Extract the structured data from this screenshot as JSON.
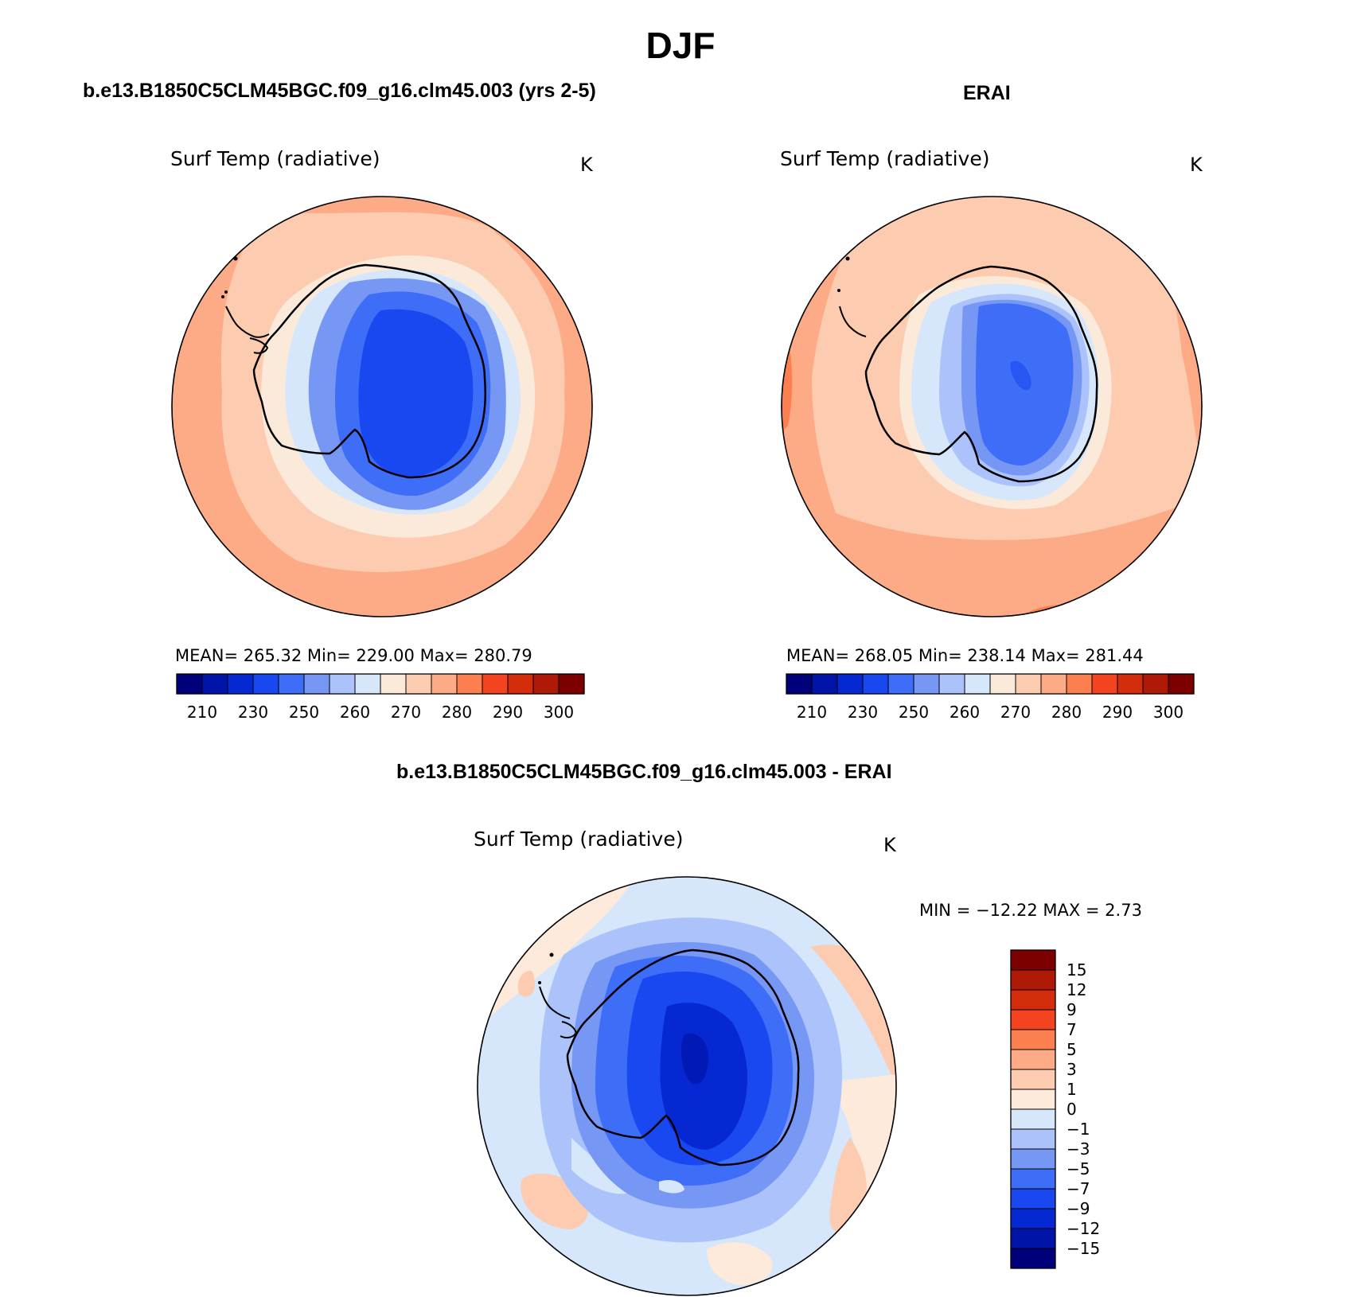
{
  "figure": {
    "title": "DJF",
    "colors": {
      "abs_levels": [
        "#00007a",
        "#0014a8",
        "#0528d2",
        "#1a48f0",
        "#3e6df7",
        "#7797f5",
        "#abc3fa",
        "#d6e6fb",
        "#fbe9da",
        "#fcccb0",
        "#fcab86",
        "#fb7f4f",
        "#f4441f",
        "#d42d0c",
        "#ae1a06",
        "#7c0000"
      ],
      "diff_levels": [
        "#00007a",
        "#0014a8",
        "#0528d2",
        "#1a48f0",
        "#3e6df7",
        "#7797f5",
        "#abc3fa",
        "#d6e6fb",
        "#fdeadb",
        "#fccbb0",
        "#fcab86",
        "#fb7f4f",
        "#f4441f",
        "#d42d0c",
        "#ae1a06",
        "#7c0000"
      ]
    }
  },
  "panels": {
    "model": {
      "case_title": "b.e13.B1850C5CLM45BGC.f09_g16.clm45.003 (yrs 2-5)",
      "variable": "Surf Temp (radiative)",
      "units": "K",
      "stats": "MEAN= 265.32   Min= 229.00   Max= 280.79"
    },
    "obs": {
      "case_title": "ERAI",
      "variable": "Surf Temp (radiative)",
      "units": "K",
      "stats": "MEAN= 268.05   Min= 238.14   Max= 281.44"
    },
    "diff": {
      "case_title": "b.e13.B1850C5CLM45BGC.f09_g16.clm45.003 - ERAI",
      "variable": "Surf Temp (radiative)",
      "units": "K",
      "stats": "MIN = −12.22 MAX =    2.73"
    }
  },
  "chart_data": [
    {
      "type": "heatmap",
      "projection": "south polar stereographic",
      "title": "b.e13.B1850C5CLM45BGC.f09_g16.clm45.003 (yrs 2-5)",
      "variable": "Surf Temp (radiative)",
      "units": "K",
      "mean": 265.32,
      "min": 229.0,
      "max": 280.79,
      "colorbar_tick_labels": [
        "210",
        "230",
        "250",
        "260",
        "270",
        "280",
        "290",
        "300"
      ]
    },
    {
      "type": "heatmap",
      "projection": "south polar stereographic",
      "title": "ERAI",
      "variable": "Surf Temp (radiative)",
      "units": "K",
      "mean": 268.05,
      "min": 238.14,
      "max": 281.44,
      "colorbar_tick_labels": [
        "210",
        "230",
        "250",
        "260",
        "270",
        "280",
        "290",
        "300"
      ]
    },
    {
      "type": "heatmap",
      "projection": "south polar stereographic",
      "title": "b.e13.B1850C5CLM45BGC.f09_g16.clm45.003 - ERAI",
      "variable": "Surf Temp (radiative)",
      "units": "K",
      "min": -12.22,
      "max": 2.73,
      "colorbar_tick_labels": [
        "15",
        "12",
        "9",
        "7",
        "5",
        "3",
        "1",
        "0",
        "−1",
        "−3",
        "−5",
        "−7",
        "−9",
        "−12",
        "−15"
      ]
    }
  ]
}
